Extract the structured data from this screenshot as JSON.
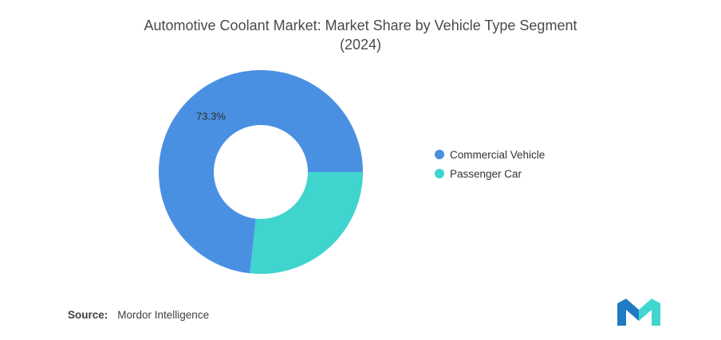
{
  "header": {
    "title_lines": [
      "Automotive Coolant Market: Market Share by Vehicle Type Segment",
      "(2024)"
    ]
  },
  "chart_data": {
    "type": "pie",
    "donut": true,
    "title": "Automotive Coolant Market: Market Share by Vehicle Type Segment (2024)",
    "categories": [
      "Commercial Vehicle",
      "Passenger Car"
    ],
    "values": [
      73.3,
      26.7
    ],
    "colors": [
      "#4A90E2",
      "#3FD4CE"
    ],
    "start_angle_deg": 186.1,
    "data_label": {
      "slice": 0,
      "text": "73.3%"
    },
    "legend_position": "right",
    "hole_color": "#FFFFFF"
  },
  "legend": {
    "items": [
      {
        "label": "Commercial Vehicle"
      },
      {
        "label": "Passenger Car"
      }
    ]
  },
  "source": {
    "label": "Source:",
    "value": "Mordor Intelligence"
  },
  "logo": {
    "blue": "#1E7BC4",
    "teal": "#41D6D0"
  }
}
